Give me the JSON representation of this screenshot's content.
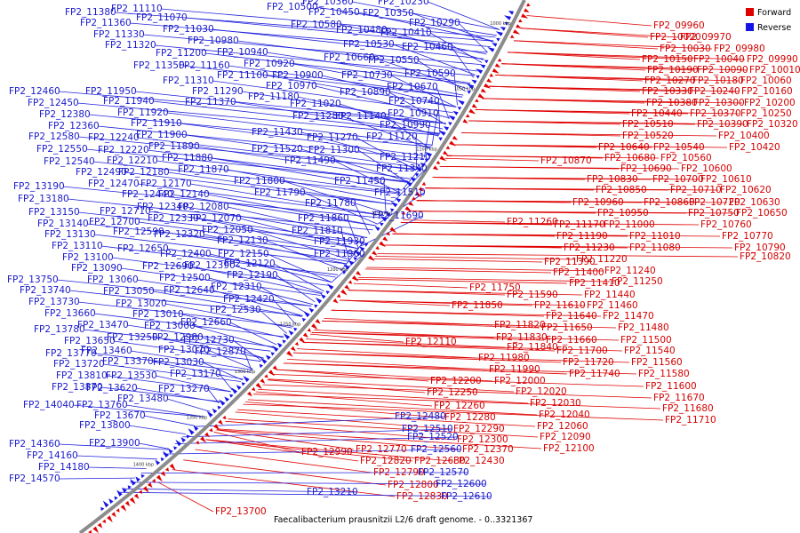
{
  "caption": "Faecalibacterium prausnitzii L2/6 draft genome. - 0..3321367",
  "legend": [
    {
      "label": "Forward",
      "color": "#e00000"
    },
    {
      "label": "Reverse",
      "color": "#1414e6"
    }
  ],
  "ticks": [
    "1000 kbp",
    "1050 kbp",
    "1100 kbp",
    "1150 kbp",
    "1200 kbp",
    "1250 kbp",
    "1300 kbp",
    "1350 kbp",
    "1400 kbp"
  ],
  "forward_labels": [
    "FP2_09960",
    "FP2_10020",
    "FP2_09970",
    "FP2_10030",
    "FP2_09980",
    "FP2_10150",
    "FP2_10040",
    "FP2_09990",
    "FP2_10190",
    "FP2_10090",
    "FP2_10010",
    "FP2_10270",
    "FP2_10180",
    "FP2_10060",
    "FP2_10330",
    "FP2_10240",
    "FP2_10160",
    "FP2_10380",
    "FP2_10300",
    "FP2_10200",
    "FP2_10440",
    "FP2_10370",
    "FP2_10250",
    "FP2_10510",
    "FP2_10390",
    "FP2_10320",
    "FP2_10520",
    "FP2_10400",
    "FP2_10640",
    "FP2_10540",
    "FP2_10420",
    "FP2_10680",
    "FP2_10560",
    "FP2_10870",
    "FP2_10690",
    "FP2_10600",
    "FP2_10830",
    "FP2_10700",
    "FP2_10610",
    "FP2_10850",
    "FP2_10710",
    "FP2_10620",
    "FP2_10960",
    "FP2_10860",
    "FP2_10720",
    "FP2_10630",
    "FP2_10950",
    "FP2_10750",
    "FP2_10650",
    "FP2_11260",
    "FP2_11170",
    "FP2_11000",
    "FP2_10760",
    "FP2_11190",
    "FP2_11010",
    "FP2_10770",
    "FP2_11230",
    "FP2_11080",
    "FP2_10790",
    "FP2_11220",
    "FP2_10820",
    "FP2_11390",
    "FP2_11400",
    "FP2_11240",
    "FP2_11410",
    "FP2_11250",
    "FP2_11750",
    "FP2_11590",
    "FP2_11440",
    "FP2_11850",
    "FP2_11610",
    "FP2_11460",
    "FP2_11640",
    "FP2_11470",
    "FP2_11820",
    "FP2_11650",
    "FP2_11480",
    "FP2_11830",
    "FP2_11660",
    "FP2_11500",
    "FP2_12110",
    "FP2_11840",
    "FP2_11700",
    "FP2_11540",
    "FP2_11980",
    "FP2_11720",
    "FP2_11560",
    "FP2_11990",
    "FP2_11740",
    "FP2_11580",
    "FP2_12000",
    "FP2_11600",
    "FP2_12200",
    "FP2_12020",
    "FP2_11670",
    "FP2_12250",
    "FP2_12030",
    "FP2_11680",
    "FP2_12260",
    "FP2_12040",
    "FP2_11710",
    "FP2_12280",
    "FP2_12060",
    "FP2_12290",
    "FP2_12090",
    "FP2_12300",
    "FP2_12100",
    "FP2_12370",
    "FP2_12990",
    "FP2_12770",
    "FP2_12430",
    "FP2_12820",
    "FP2_12630",
    "FP2_12790",
    "FP2_12800",
    "FP2_12830",
    "FP2_13700"
  ],
  "reverse_labels": [
    "FP2_11380",
    "FP2_11110",
    "FP2_11360",
    "FP2_11070",
    "FP2_11330",
    "FP2_11030",
    "FP2_11320",
    "FP2_10980",
    "FP2_11200",
    "FP2_10940",
    "FP2_11350",
    "FP2_11160",
    "FP2_10920",
    "FP2_11100",
    "FP2_10900",
    "FP2_11310",
    "FP2_10970",
    "FP2_10730",
    "FP2_11290",
    "FP2_11180",
    "FP2_10890",
    "FP2_11370",
    "FP2_11020",
    "FP2_10740",
    "FP2_10500",
    "FP2_10360",
    "FP2_10230",
    "FP2_10450",
    "FP2_10350",
    "FP2_10580",
    "FP2_10480",
    "FP2_10410",
    "FP2_10290",
    "FP2_10530",
    "FP2_10460",
    "FP2_10660",
    "FP2_10550",
    "FP2_10590",
    "FP2_10670",
    "FP2_12460",
    "FP2_11950",
    "FP2_12450",
    "FP2_11940",
    "FP2_12380",
    "FP2_11920",
    "FP2_12360",
    "FP2_11910",
    "FP2_12580",
    "FP2_12240",
    "FP2_11900",
    "FP2_12550",
    "FP2_12220",
    "FP2_11890",
    "FP2_12540",
    "FP2_12210",
    "FP2_11880",
    "FP2_12490",
    "FP2_12180",
    "FP2_11870",
    "FP2_12470",
    "FP2_12170",
    "FP2_12440",
    "FP2_12140",
    "FP2_12340",
    "FP2_12080",
    "FP2_12330",
    "FP2_12070",
    "FP2_12590",
    "FP2_12320",
    "FP2_12050",
    "FP2_12130",
    "FP2_12650",
    "FP2_12400",
    "FP2_12150",
    "FP2_12690",
    "FP2_12390",
    "FP2_12120",
    "FP2_12500",
    "FP2_12190",
    "FP2_12640",
    "FP2_12310",
    "FP2_12420",
    "FP2_12530",
    "FP2_12660",
    "FP2_12730",
    "FP2_12870",
    "FP2_13190",
    "FP2_13180",
    "FP2_12710",
    "FP2_13150",
    "FP2_12700",
    "FP2_13140",
    "FP2_13130",
    "FP2_13110",
    "FP2_13100",
    "FP2_13090",
    "FP2_13060",
    "FP2_13750",
    "FP2_13050",
    "FP2_13740",
    "FP2_13730",
    "FP2_13020",
    "FP2_13660",
    "FP2_13010",
    "FP2_13470",
    "FP2_13000",
    "FP2_13780",
    "FP2_13250",
    "FP2_12980",
    "FP2_13650",
    "FP2_13460",
    "FP2_13070",
    "FP2_13770",
    "FP2_13370",
    "FP2_13030",
    "FP2_13720",
    "FP2_13810",
    "FP2_13530",
    "FP2_13170",
    "FP2_13870",
    "FP2_13620",
    "FP2_13270",
    "FP2_13480",
    "FP2_14040",
    "FP2_13760",
    "FP2_13670",
    "FP2_13800",
    "FP2_13900",
    "FP2_14360",
    "FP2_14160",
    "FP2_14180",
    "FP2_14570",
    "FP2_11280",
    "FP2_11140",
    "FP2_10910",
    "FP2_11430",
    "FP2_11270",
    "FP2_10990",
    "FP2_11120",
    "FP2_11520",
    "FP2_11300",
    "FP2_11490",
    "FP2_11210",
    "FP2_11340",
    "FP2_11450",
    "FP2_11800",
    "FP2_11510",
    "FP2_11790",
    "FP2_11780",
    "FP2_11690",
    "FP2_11860",
    "FP2_11810",
    "FP2_11930",
    "FP2_11960",
    "FP2_12480",
    "FP2_12510",
    "FP2_12520",
    "FP2_12560",
    "FP2_12570",
    "FP2_12600",
    "FP2_12610",
    "FP2_13210"
  ]
}
